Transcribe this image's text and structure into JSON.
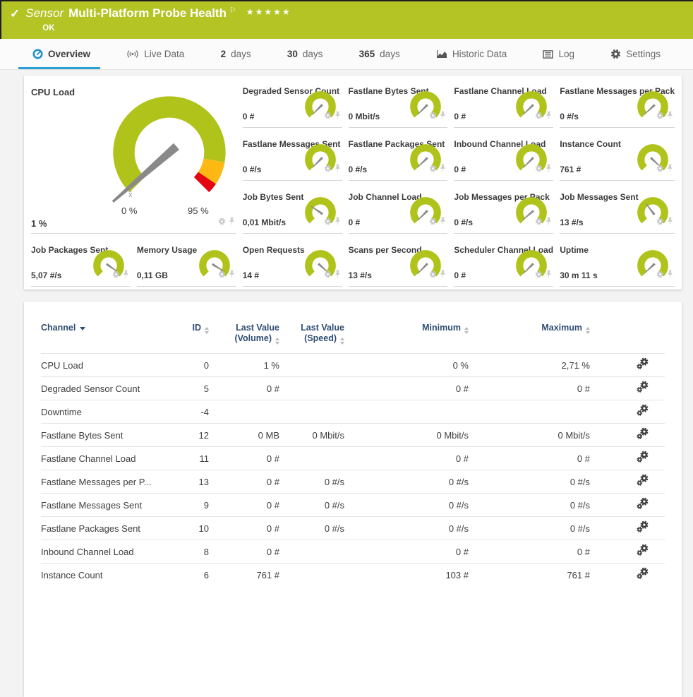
{
  "header": {
    "check_icon": "✓",
    "kind": "Sensor",
    "title": "Multi-Platform Probe Health",
    "flag_icon": "⚐",
    "stars": "★★★★★",
    "status": "OK",
    "bg_color": "#b4c424"
  },
  "tabs": [
    {
      "id": "overview",
      "icon": "gauge",
      "label": "Overview",
      "active": true
    },
    {
      "id": "live-data",
      "icon": "broadcast",
      "label": "Live Data"
    },
    {
      "id": "2-days",
      "prefix": "2",
      "label": "days"
    },
    {
      "id": "30-days",
      "prefix": "30",
      "label": "days"
    },
    {
      "id": "365-days",
      "prefix": "365",
      "label": "days"
    },
    {
      "id": "historic-data",
      "icon": "chart",
      "label": "Historic Data"
    },
    {
      "id": "log",
      "icon": "log",
      "label": "Log"
    },
    {
      "id": "settings",
      "icon": "gear",
      "label": "Settings"
    }
  ],
  "overview": {
    "gauge_color": "#b0c31a",
    "needle_color": "#898989",
    "accent_blue": "#2aa1d6",
    "main_gauge": {
      "title": "CPU Load",
      "value": "1 %",
      "scale_min": "0 %",
      "scale_max": "95 %",
      "mean_marker": "x̄",
      "needle_deg": -131,
      "segments": [
        {
          "from": -135,
          "to": 100,
          "color": "#b0c31a"
        },
        {
          "from": 100,
          "to": 124,
          "color": "#fdb813"
        },
        {
          "from": 124,
          "to": 135,
          "color": "#e30613"
        }
      ]
    },
    "small_gauges": [
      {
        "title": "Degraded Sensor Count",
        "value": "0 #",
        "needle_deg": -135
      },
      {
        "title": "Fastlane Bytes Sent",
        "value": "0 Mbit/s",
        "needle_deg": -135
      },
      {
        "title": "Fastlane Channel Load",
        "value": "0 #",
        "needle_deg": -134
      },
      {
        "title": "Fastlane Messages per Pack",
        "value": "0 #/s",
        "needle_deg": -133
      },
      {
        "title": "Fastlane Messages Sent",
        "value": "0 #/s",
        "needle_deg": -135
      },
      {
        "title": "Fastlane Packages Sent",
        "value": "0 #/s",
        "needle_deg": -134
      },
      {
        "title": "Inbound Channel Load",
        "value": "0 #",
        "needle_deg": -135
      },
      {
        "title": "Instance Count",
        "value": "761 #",
        "needle_deg": 133
      },
      {
        "title": "Job Bytes Sent",
        "value": "0,01 Mbit/s",
        "needle_deg": -56
      },
      {
        "title": "Job Channel Load",
        "value": "0 #",
        "needle_deg": -135
      },
      {
        "title": "Job Messages per Pack",
        "value": "0 #/s",
        "needle_deg": -130
      },
      {
        "title": "Job Messages Sent",
        "value": "13 #/s",
        "needle_deg": -37
      },
      {
        "title": "Job Packages Sent",
        "value": "5,07 #/s",
        "needle_deg": 125
      },
      {
        "title": "Memory Usage",
        "value": "0,11 GB",
        "needle_deg": 122
      },
      {
        "title": "Open Requests",
        "value": "14 #",
        "needle_deg": 132
      },
      {
        "title": "Scans per Second",
        "value": "13 #/s",
        "needle_deg": -136
      },
      {
        "title": "Scheduler Channel Load",
        "value": "0 #",
        "needle_deg": -135
      },
      {
        "title": "Uptime",
        "value": "30 m 11 s",
        "needle_deg": -133
      }
    ]
  },
  "table": {
    "columns": [
      {
        "label": "Channel",
        "sort": "active-desc",
        "align": "left"
      },
      {
        "label": "ID",
        "sort": "both",
        "align": "right"
      },
      {
        "label": "Last Value",
        "label2": "(Volume)",
        "sort": "both",
        "align": "right"
      },
      {
        "label": "Last Value",
        "label2": "(Speed)",
        "sort": "both",
        "align": "right"
      },
      {
        "label": "Minimum",
        "sort": "both",
        "align": "right"
      },
      {
        "label": "Maximum",
        "sort": "both",
        "align": "right"
      }
    ],
    "rows": [
      {
        "channel": "CPU Load",
        "id": "0",
        "volume": "1 %",
        "speed": "",
        "min": "0 %",
        "max": "2,71 %"
      },
      {
        "channel": "Degraded Sensor Count",
        "id": "5",
        "volume": "0 #",
        "speed": "",
        "min": "0 #",
        "max": "0 #"
      },
      {
        "channel": "Downtime",
        "id": "-4",
        "volume": "",
        "speed": "",
        "min": "",
        "max": ""
      },
      {
        "channel": "Fastlane Bytes Sent",
        "id": "12",
        "volume": "0 MB",
        "speed": "0 Mbit/s",
        "min": "0 Mbit/s",
        "max": "0 Mbit/s"
      },
      {
        "channel": "Fastlane Channel Load",
        "id": "11",
        "volume": "0 #",
        "speed": "",
        "min": "0 #",
        "max": "0 #"
      },
      {
        "channel": "Fastlane Messages per P...",
        "id": "13",
        "volume": "0 #",
        "speed": "0 #/s",
        "min": "0 #/s",
        "max": "0 #/s"
      },
      {
        "channel": "Fastlane Messages Sent",
        "id": "9",
        "volume": "0 #",
        "speed": "0 #/s",
        "min": "0 #/s",
        "max": "0 #/s"
      },
      {
        "channel": "Fastlane Packages Sent",
        "id": "10",
        "volume": "0 #",
        "speed": "0 #/s",
        "min": "0 #/s",
        "max": "0 #/s"
      },
      {
        "channel": "Inbound Channel Load",
        "id": "8",
        "volume": "0 #",
        "speed": "",
        "min": "0 #",
        "max": "0 #"
      },
      {
        "channel": "Instance Count",
        "id": "6",
        "volume": "761 #",
        "speed": "",
        "min": "103 #",
        "max": "761 #"
      }
    ]
  }
}
